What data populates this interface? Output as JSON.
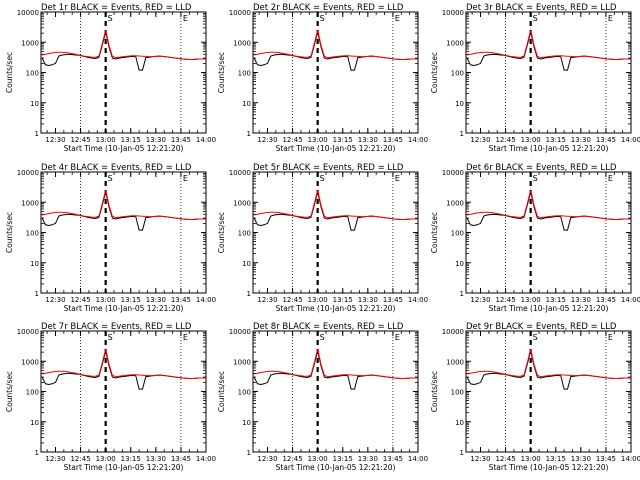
{
  "colors": {
    "events": "#000000",
    "lld": "#ff0000",
    "background": "#ffffff"
  },
  "panels": [
    {
      "title": "Det 1r BLACK = Events, RED = LLD",
      "xlabel": "Start Time (10-Jan-05 12:21:20)",
      "ylabel": "Counts/sec",
      "markers": [
        {
          "label": "S",
          "time": "13:00"
        },
        {
          "label": "E",
          "time": "13:45"
        }
      ]
    },
    {
      "title": "Det 2r BLACK = Events, RED = LLD",
      "xlabel": "Start Time (10-Jan-05 12:21:20)",
      "ylabel": "Counts/sec",
      "markers": [
        {
          "label": "S",
          "time": "13:00"
        },
        {
          "label": "E",
          "time": "13:45"
        }
      ]
    },
    {
      "title": "Det 3r BLACK = Events, RED = LLD",
      "xlabel": "Start Time (10-Jan-05 12:21:20)",
      "ylabel": "Counts/sec",
      "markers": [
        {
          "label": "S",
          "time": "13:00"
        },
        {
          "label": "E",
          "time": "13:45"
        }
      ]
    },
    {
      "title": "Det 4r BLACK = Events, RED = LLD",
      "xlabel": "Start Time (10-Jan-05 12:21:20)",
      "ylabel": "Counts/sec",
      "markers": [
        {
          "label": "S",
          "time": "13:00"
        },
        {
          "label": "E",
          "time": "13:45"
        }
      ]
    },
    {
      "title": "Det 5r BLACK = Events, RED = LLD",
      "xlabel": "Start Time (10-Jan-05 12:21:20)",
      "ylabel": "Counts/sec",
      "markers": [
        {
          "label": "S",
          "time": "13:00"
        },
        {
          "label": "E",
          "time": "13:45"
        }
      ]
    },
    {
      "title": "Det 6r BLACK = Events, RED = LLD",
      "xlabel": "Start Time (10-Jan-05 12:21:20)",
      "ylabel": "Counts/sec",
      "markers": [
        {
          "label": "S",
          "time": "13:00"
        },
        {
          "label": "E",
          "time": "13:45"
        }
      ]
    },
    {
      "title": "Det 7r BLACK = Events, RED = LLD",
      "xlabel": "Start Time (10-Jan-05 12:21:20)",
      "ylabel": "Counts/sec",
      "markers": [
        {
          "label": "S",
          "time": "13:00"
        },
        {
          "label": "E",
          "time": "13:45"
        }
      ]
    },
    {
      "title": "Det 8r BLACK = Events, RED = LLD",
      "xlabel": "Start Time (10-Jan-05 12:21:20)",
      "ylabel": "Counts/sec",
      "markers": [
        {
          "label": "S",
          "time": "13:00"
        },
        {
          "label": "E",
          "time": "13:45"
        }
      ]
    },
    {
      "title": "Det 9r BLACK = Events, RED = LLD",
      "xlabel": "Start Time (10-Jan-05 12:21:20)",
      "ylabel": "Counts/sec",
      "markers": [
        {
          "label": "S",
          "time": "13:00"
        },
        {
          "label": "E",
          "time": "13:45"
        }
      ]
    }
  ],
  "chart_data": {
    "type": "line",
    "panel_count": 9,
    "x_ticks": [
      "12:30",
      "12:45",
      "13:00",
      "13:15",
      "13:30",
      "13:45",
      "14:00"
    ],
    "x_range": [
      "12:21:20",
      "14:00"
    ],
    "y_scale": "log",
    "y_ticks": [
      "1",
      "10",
      "100",
      "1000",
      "10000"
    ],
    "ylim": [
      1,
      10000
    ],
    "vertical_dotted_lines": [
      "12:45",
      "13:45"
    ],
    "vertical_dashed_line": "13:00",
    "x": [
      "12:22",
      "12:24",
      "12:26",
      "12:28",
      "12:30",
      "12:32",
      "12:34",
      "12:36",
      "12:38",
      "12:40",
      "12:42",
      "12:44",
      "12:46",
      "12:48",
      "12:50",
      "12:52",
      "12:54",
      "12:56",
      "12:58",
      "13:00",
      "13:02",
      "13:04",
      "13:06",
      "13:08",
      "13:10",
      "13:12",
      "13:14",
      "13:16",
      "13:18",
      "13:20",
      "13:22",
      "13:24",
      "13:26",
      "13:28",
      "13:30",
      "13:32",
      "13:34",
      "13:36",
      "13:38",
      "13:40",
      "13:42",
      "13:44",
      "13:46",
      "13:48",
      "13:50",
      "13:52",
      "13:54",
      "13:56",
      "13:58",
      "14:00"
    ],
    "series": [
      {
        "name": "Events",
        "color": "#000000",
        "values": [
          300,
          180,
          170,
          180,
          200,
          350,
          380,
          390,
          400,
          390,
          380,
          370,
          350,
          330,
          310,
          300,
          290,
          320,
          800,
          2200,
          700,
          300,
          280,
          300,
          310,
          320,
          330,
          340,
          330,
          120,
          120,
          310,
          320,
          330,
          340,
          350,
          340,
          330,
          320,
          310,
          300,
          290,
          280,
          275,
          270,
          270,
          275,
          280,
          280,
          280
        ]
      },
      {
        "name": "LLD",
        "color": "#ff0000",
        "values": [
          380,
          400,
          420,
          440,
          460,
          470,
          470,
          460,
          440,
          420,
          400,
          380,
          360,
          340,
          330,
          320,
          320,
          350,
          900,
          2600,
          800,
          340,
          310,
          320,
          330,
          340,
          350,
          360,
          360,
          350,
          345,
          340,
          335,
          335,
          340,
          345,
          340,
          330,
          320,
          310,
          300,
          290,
          280,
          275,
          270,
          270,
          275,
          280,
          280,
          280
        ]
      }
    ]
  }
}
